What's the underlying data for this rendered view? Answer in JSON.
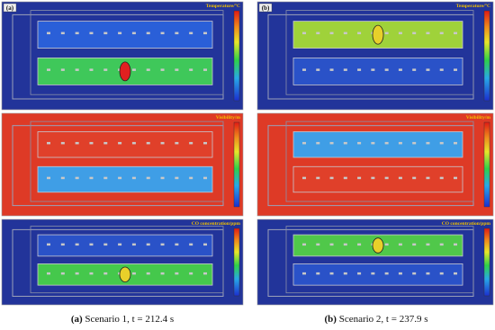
{
  "panels": [
    {
      "label": "(a)",
      "views": [
        {
          "title": "Temperature/°C"
        },
        {
          "title": "Visibility/m"
        },
        {
          "title": "CO concentration/ppm"
        }
      ],
      "caption": {
        "label": "(a)",
        "text": "Scenario 1, t = 212.4 s"
      }
    },
    {
      "label": "(b)",
      "views": [
        {
          "title": "Temperature/°C"
        },
        {
          "title": "Visibility/m"
        },
        {
          "title": "CO concentration/ppm"
        }
      ],
      "caption": {
        "label": "(b)",
        "text": "Scenario 2, t = 237.9 s"
      }
    }
  ]
}
